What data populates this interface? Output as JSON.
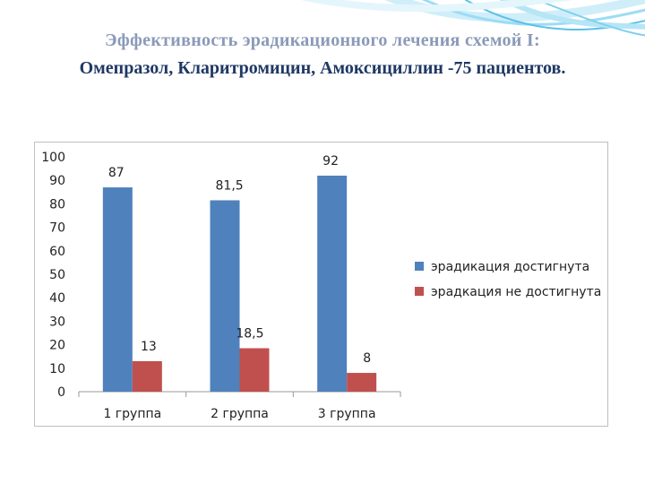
{
  "slide": {
    "title_line_1": "Эффективность эрадикационного лечения схемой I:",
    "title_line_2": "Омепразол, Кларитромицин, Амоксициллин -75 пациентов."
  },
  "chart_data": {
    "type": "bar",
    "title": "",
    "xlabel": "",
    "ylabel": "",
    "categories": [
      "1 группа",
      "2 группа",
      "3 группа"
    ],
    "series": [
      {
        "name": "эрадикация достигнута",
        "values": [
          87,
          81.5,
          92
        ],
        "labels": [
          "87",
          "81,5",
          "92"
        ],
        "color": "#4f81bd"
      },
      {
        "name": "эрадкация не достигнута",
        "values": [
          13,
          18.5,
          8
        ],
        "labels": [
          "13",
          "18,5",
          "8"
        ],
        "color": "#c0504d"
      }
    ],
    "ylim": [
      0,
      100
    ],
    "yticks": [
      0,
      10,
      20,
      30,
      40,
      50,
      60,
      70,
      80,
      90,
      100
    ],
    "grid": false,
    "legend_position": "right"
  },
  "colors": {
    "title_line_1": "#8a9ab8",
    "title_line_2": "#1f3864",
    "decor": "#5bc0e8"
  }
}
